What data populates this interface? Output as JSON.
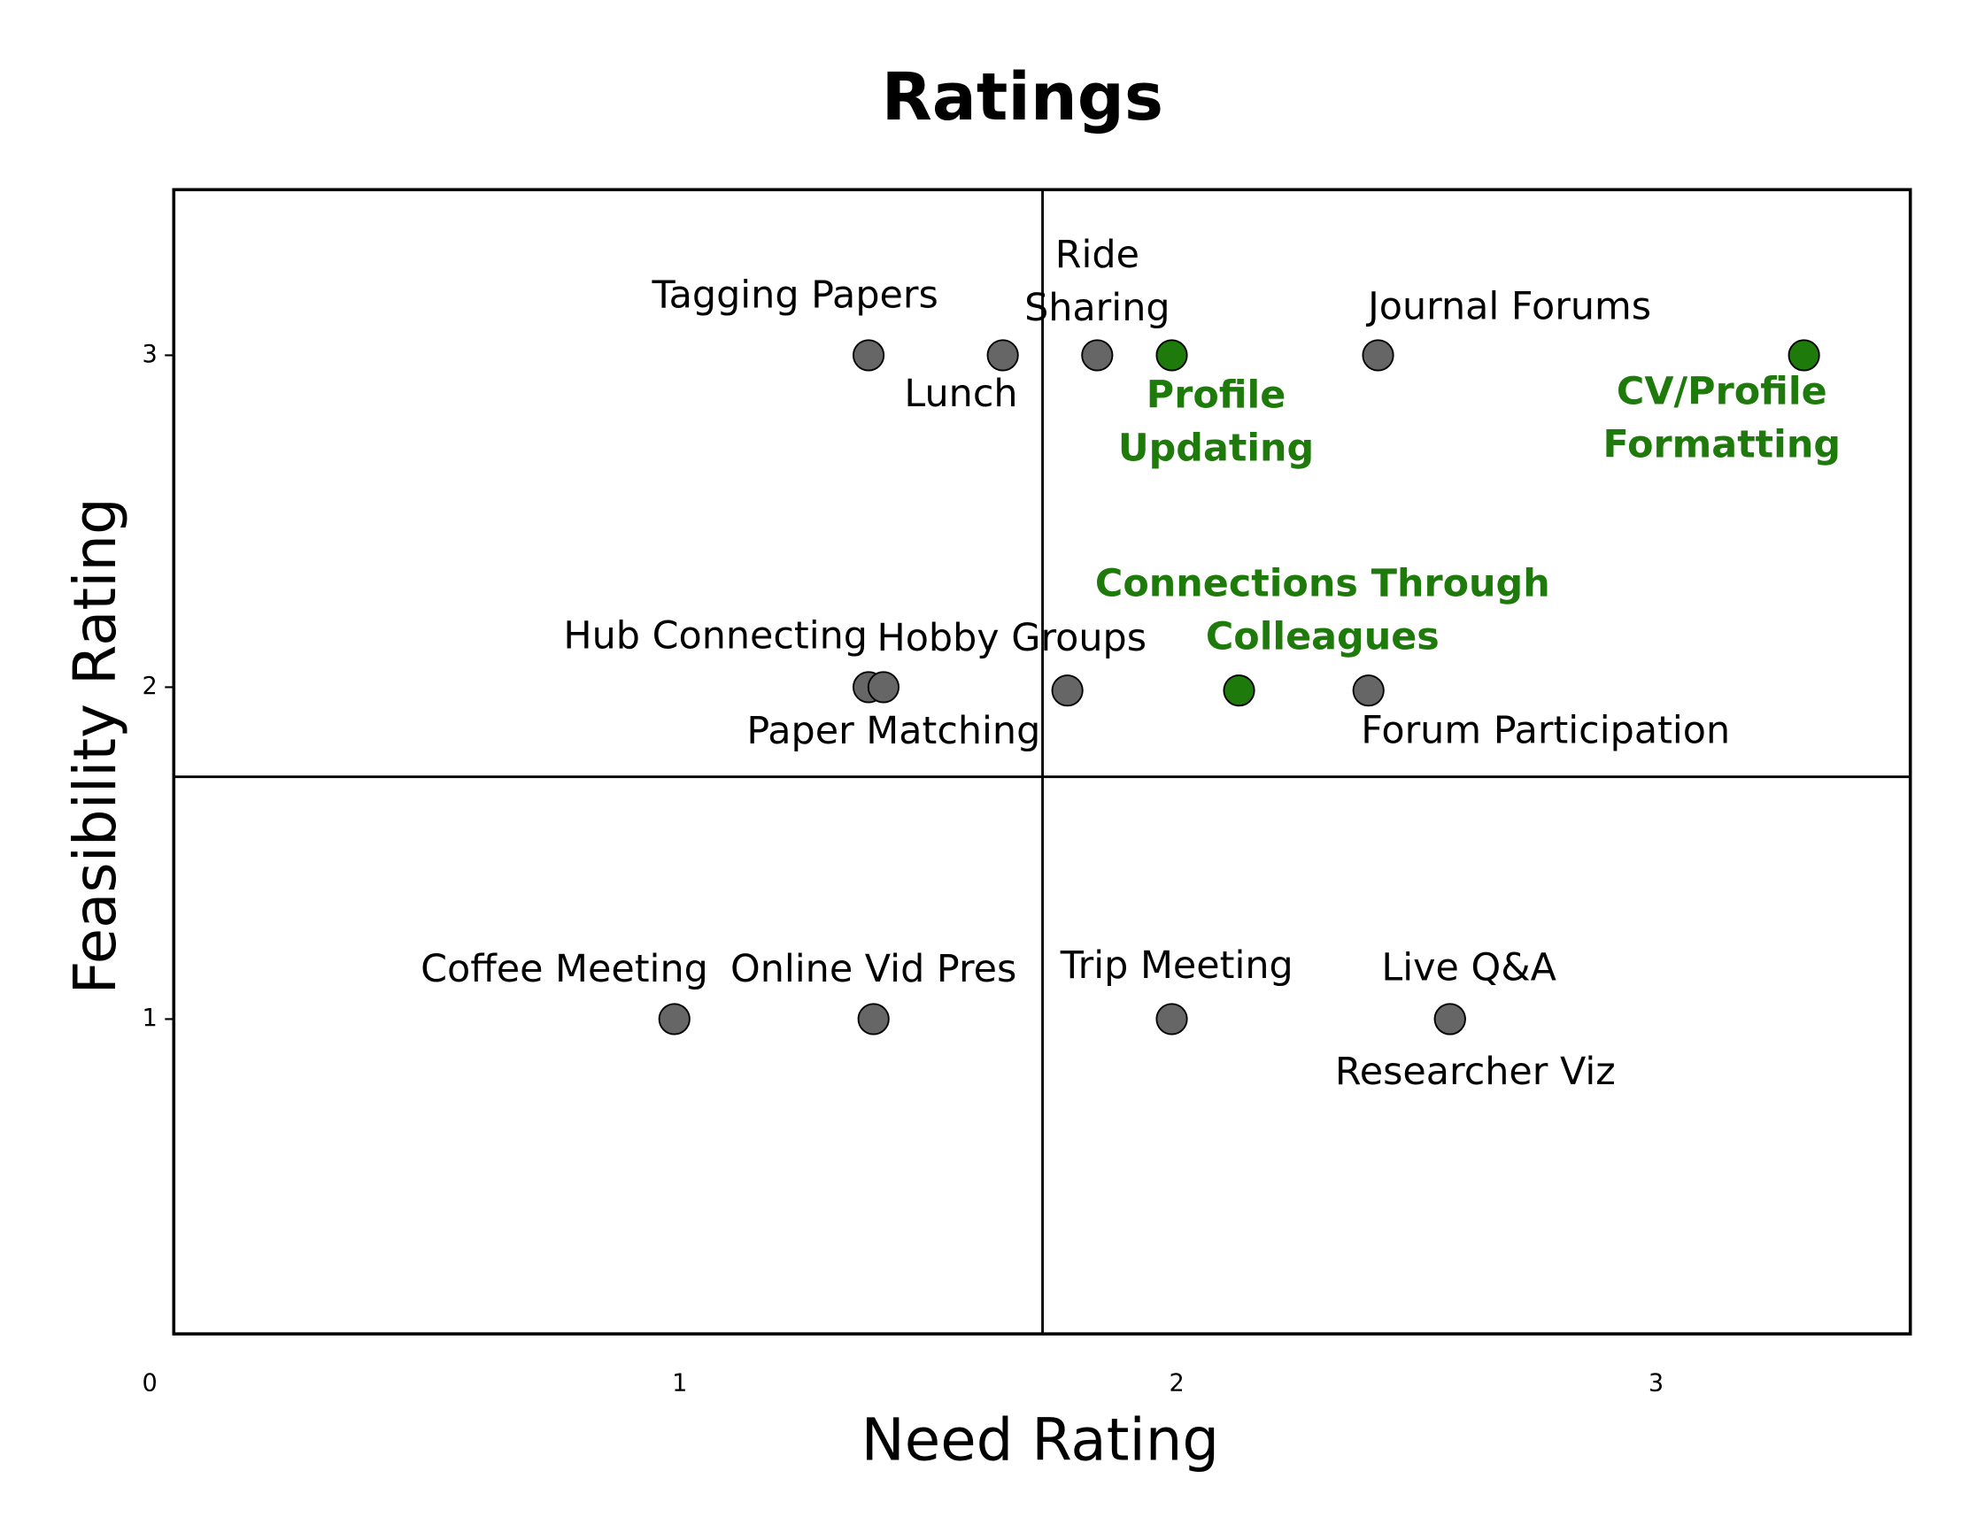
{
  "chart_data": {
    "type": "scatter",
    "title": "Ratings",
    "xlabel": "Need Rating",
    "ylabel": "Feasibility Rating",
    "xlim": [
      0,
      3.55
    ],
    "ylim": [
      0.05,
      3.5
    ],
    "x_ticks": [
      0,
      1,
      2,
      3
    ],
    "y_ticks": [
      1,
      2,
      3
    ],
    "grid": false,
    "quadrant_lines": {
      "x": 1.73,
      "y": 1.73
    },
    "colors": {
      "default": "#666666",
      "highlight": "#1f7a0c",
      "highlight_label": "#1f7a0c"
    },
    "points": [
      {
        "label": "Tagging Papers",
        "x": 1.38,
        "y": 3,
        "highlight": false
      },
      {
        "label": "Lunch",
        "x": 1.65,
        "y": 3,
        "highlight": false
      },
      {
        "label": "Ride\nSharing",
        "x": 1.84,
        "y": 3,
        "highlight": false
      },
      {
        "label": "Profile\nUpdating",
        "x": 1.99,
        "y": 3,
        "highlight": true
      },
      {
        "label": "Journal Forums",
        "x": 2.42,
        "y": 3,
        "highlight": false
      },
      {
        "label": "CV/Profile\nFormatting",
        "x": 3.32,
        "y": 3,
        "highlight": true
      },
      {
        "label": "Hub Connecting",
        "x": 1.38,
        "y": 2,
        "highlight": false
      },
      {
        "label": "Paper Matching",
        "x": 1.41,
        "y": 2,
        "highlight": false
      },
      {
        "label": "Hobby Groups",
        "x": 1.78,
        "y": 1.99,
        "highlight": false
      },
      {
        "label": "Connections Through\nColleagues",
        "x": 2.13,
        "y": 1.99,
        "highlight": true
      },
      {
        "label": "Forum Participation",
        "x": 2.4,
        "y": 1.99,
        "highlight": false
      },
      {
        "label": "Coffee Meeting",
        "x": 0.99,
        "y": 1,
        "highlight": false
      },
      {
        "label": "Online Vid Pres",
        "x": 1.39,
        "y": 1,
        "highlight": false
      },
      {
        "label": "Trip Meeting",
        "x": 1.99,
        "y": 1,
        "highlight": false
      },
      {
        "label": "Live Q&A",
        "x": 2.57,
        "y": 1,
        "highlight": false
      },
      {
        "label": "Researcher Viz",
        "x": 2.57,
        "y": 1,
        "highlight": false
      }
    ]
  }
}
